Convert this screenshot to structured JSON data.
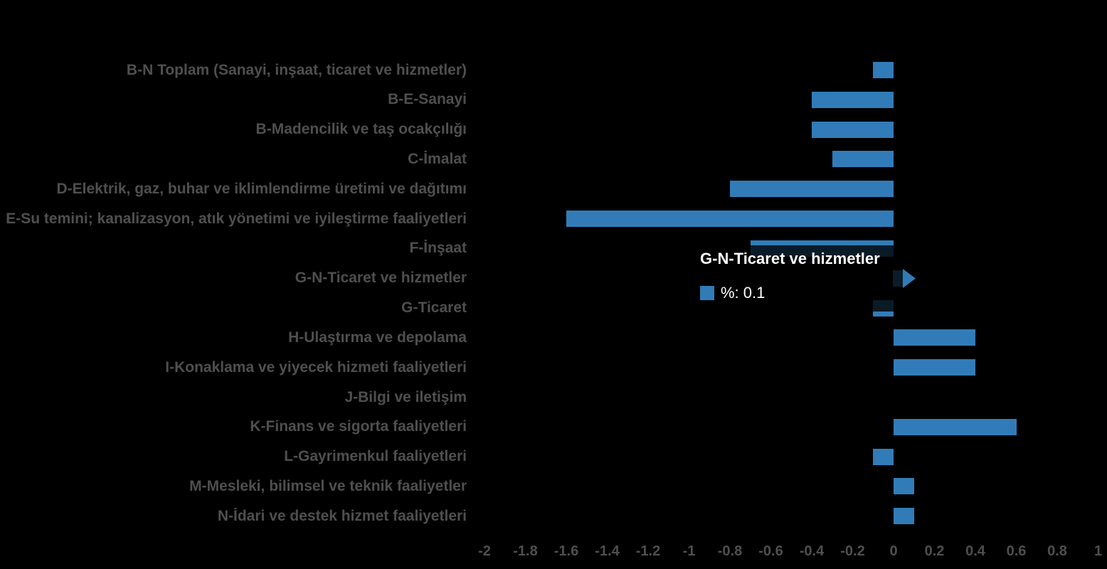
{
  "chart_data": {
    "type": "bar",
    "orientation": "horizontal",
    "title": "",
    "unit_label": "%",
    "grid": false,
    "legend_position": "none",
    "categories": [
      "B-N Toplam (Sanayi, inşaat, ticaret ve hizmetler)",
      "B-E-Sanayi",
      "B-Madencilik ve taş ocakçılığı",
      "C-İmalat",
      "D-Elektrik, gaz, buhar ve iklimlendirme üretimi ve dağıtımı",
      "E-Su temini; kanalizasyon, atık yönetimi ve iyileştirme faaliyetleri",
      "F-İnşaat",
      "G-N-Ticaret ve hizmetler",
      "G-Ticaret",
      "H-Ulaştırma ve depolama",
      "I-Konaklama ve yiyecek hizmeti faaliyetleri",
      "J-Bilgi ve iletişim",
      "K-Finans ve sigorta faaliyetleri",
      "L-Gayrimenkul faaliyetleri",
      "M-Mesleki, bilimsel ve teknik faaliyetler",
      "N-İdari ve destek hizmet faaliyetleri"
    ],
    "values": [
      -0.1,
      -0.4,
      -0.4,
      -0.3,
      -0.8,
      -1.6,
      -0.7,
      0.1,
      -0.1,
      0.4,
      0.4,
      0,
      0.6,
      -0.1,
      0.1,
      0.1
    ],
    "xlim": [
      -2,
      1
    ],
    "x_ticks": [
      "-2",
      "-1.8",
      "-1.6",
      "-1.4",
      "-1.2",
      "-1",
      "-0.8",
      "-0.6",
      "-0.4",
      "-0.2",
      "0",
      "0.2",
      "0.4",
      "0.6",
      "0.8",
      "1"
    ],
    "colors": {
      "bar": "#317cb8",
      "dimmed_bar": "#0c1c2a",
      "category_label": "#4f4f4f",
      "tick_label": "#4f4f4f",
      "background": "#000000",
      "tooltip_text": "#ffffff"
    },
    "hovered_index": 7,
    "tooltip": {
      "title": "G-N-Ticaret ve hizmetler",
      "series_swatch_color": "#317cb8",
      "value_text": "%: 0.1"
    }
  }
}
